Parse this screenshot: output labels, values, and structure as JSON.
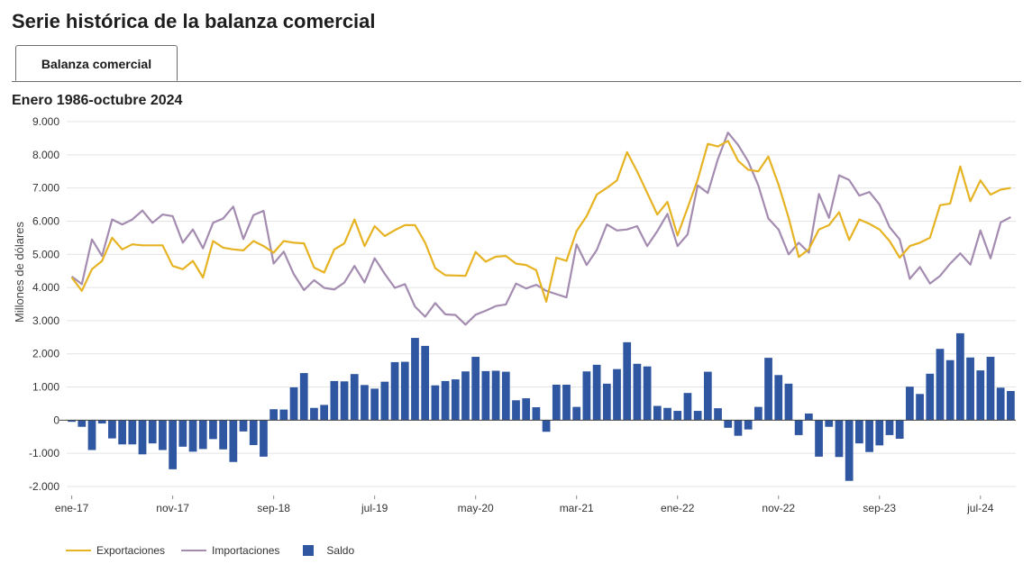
{
  "page": {
    "title": "Serie histórica de la balanza comercial",
    "tab_label": "Balanza comercial",
    "subtitle": "Enero 1986-octubre 2024"
  },
  "colors": {
    "exports": "#e6b323",
    "imports": "#a48cb0",
    "balance": "#2f56a0",
    "grid": "#e4e4e4",
    "axis": "#333333"
  },
  "chart_data": {
    "type": "line+bar",
    "title": "Enero 1986-octubre 2024",
    "ylabel": "Millones de dólares",
    "xlabel": "",
    "ylim": [
      -2000,
      9000
    ],
    "yticks": [
      -2000,
      -1000,
      0,
      1000,
      2000,
      3000,
      4000,
      5000,
      6000,
      7000,
      8000,
      9000
    ],
    "ytick_labels": [
      "-2.000",
      "-1.000",
      "0",
      "1.000",
      "2.000",
      "3.000",
      "4.000",
      "5.000",
      "6.000",
      "7.000",
      "8.000",
      "9.000"
    ],
    "xticks": [
      {
        "index": 0,
        "label": "ene-17"
      },
      {
        "index": 10,
        "label": "nov-17"
      },
      {
        "index": 20,
        "label": "sep-18"
      },
      {
        "index": 30,
        "label": "jul-19"
      },
      {
        "index": 40,
        "label": "may-20"
      },
      {
        "index": 50,
        "label": "mar-21"
      },
      {
        "index": 60,
        "label": "ene-22"
      },
      {
        "index": 70,
        "label": "nov-22"
      },
      {
        "index": 80,
        "label": "sep-23"
      },
      {
        "index": 90,
        "label": "jul-24"
      }
    ],
    "x_start": "ene-17",
    "x_end": "oct-24",
    "series": [
      {
        "name": "Exportaciones",
        "kind": "line",
        "values": [
          4300,
          3900,
          4550,
          4800,
          5500,
          5150,
          5300,
          5270,
          5270,
          5270,
          4650,
          4550,
          4800,
          4300,
          5400,
          5200,
          5150,
          5120,
          5400,
          5250,
          5050,
          5400,
          5350,
          5330,
          4600,
          4450,
          5150,
          5330,
          6050,
          5250,
          5850,
          5550,
          5730,
          5880,
          5880,
          5350,
          4580,
          4370,
          4360,
          4350,
          5070,
          4780,
          4930,
          4950,
          4720,
          4680,
          4520,
          3570,
          4900,
          4800,
          5700,
          6150,
          6800,
          7000,
          7230,
          8080,
          7500,
          6850,
          6200,
          6580,
          5570,
          6400,
          7250,
          8330,
          8250,
          8420,
          7820,
          7550,
          7500,
          7950,
          7100,
          6100,
          4920,
          5150,
          5750,
          5880,
          6270,
          5430,
          6050,
          5920,
          5750,
          5400,
          4900,
          5250,
          5350,
          5500,
          6480,
          6530,
          7650,
          6600,
          7230,
          6800,
          6950,
          7000
        ]
      },
      {
        "name": "Importaciones",
        "kind": "line",
        "values": [
          4330,
          4100,
          5450,
          4950,
          6050,
          5900,
          6050,
          6320,
          5950,
          6200,
          6150,
          5350,
          5750,
          5180,
          5950,
          6080,
          6440,
          5460,
          6180,
          6310,
          4720,
          5080,
          4400,
          3920,
          4220,
          3990,
          3940,
          4150,
          4650,
          4150,
          4880,
          4410,
          3990,
          4100,
          3420,
          3120,
          3530,
          3190,
          3170,
          2880,
          3180,
          3300,
          3440,
          3490,
          4120,
          3970,
          4080,
          3900,
          3800,
          3700,
          5300,
          4680,
          5130,
          5900,
          5720,
          5750,
          5850,
          5250,
          5700,
          6220,
          5250,
          5600,
          7080,
          6850,
          7870,
          8670,
          8300,
          7800,
          7080,
          6080,
          5750,
          5000,
          5350,
          5050,
          6820,
          6100,
          7380,
          7240,
          6770,
          6880,
          6500,
          5820,
          5450,
          4260,
          4620,
          4120,
          4350,
          4720,
          5030,
          4690,
          5720,
          4880,
          5960,
          6120
        ]
      },
      {
        "name": "Saldo",
        "kind": "bar",
        "values": [
          -50,
          -200,
          -900,
          -100,
          -550,
          -730,
          -730,
          -1030,
          -700,
          -900,
          -1480,
          -800,
          -950,
          -870,
          -570,
          -880,
          -1260,
          -340,
          -750,
          -1100,
          330,
          320,
          990,
          1420,
          370,
          460,
          1180,
          1170,
          1390,
          1060,
          950,
          1160,
          1750,
          1760,
          2480,
          2240,
          1050,
          1180,
          1230,
          1470,
          1910,
          1480,
          1490,
          1460,
          600,
          660,
          390,
          -350,
          1070,
          1070,
          400,
          1470,
          1670,
          1100,
          1540,
          2350,
          1700,
          1620,
          430,
          370,
          280,
          820,
          280,
          1460,
          360,
          -230,
          -470,
          -280,
          400,
          1880,
          1360,
          1100,
          -450,
          200,
          -1100,
          -200,
          -1110,
          -1830,
          -700,
          -960,
          -760,
          -450,
          -560,
          1010,
          790,
          1400,
          2150,
          1810,
          2620,
          1890,
          1500,
          1910,
          980,
          880
        ]
      }
    ],
    "legend": [
      "Exportaciones",
      "Importaciones",
      "Saldo"
    ],
    "legend_position": "bottom-left",
    "grid": true
  }
}
